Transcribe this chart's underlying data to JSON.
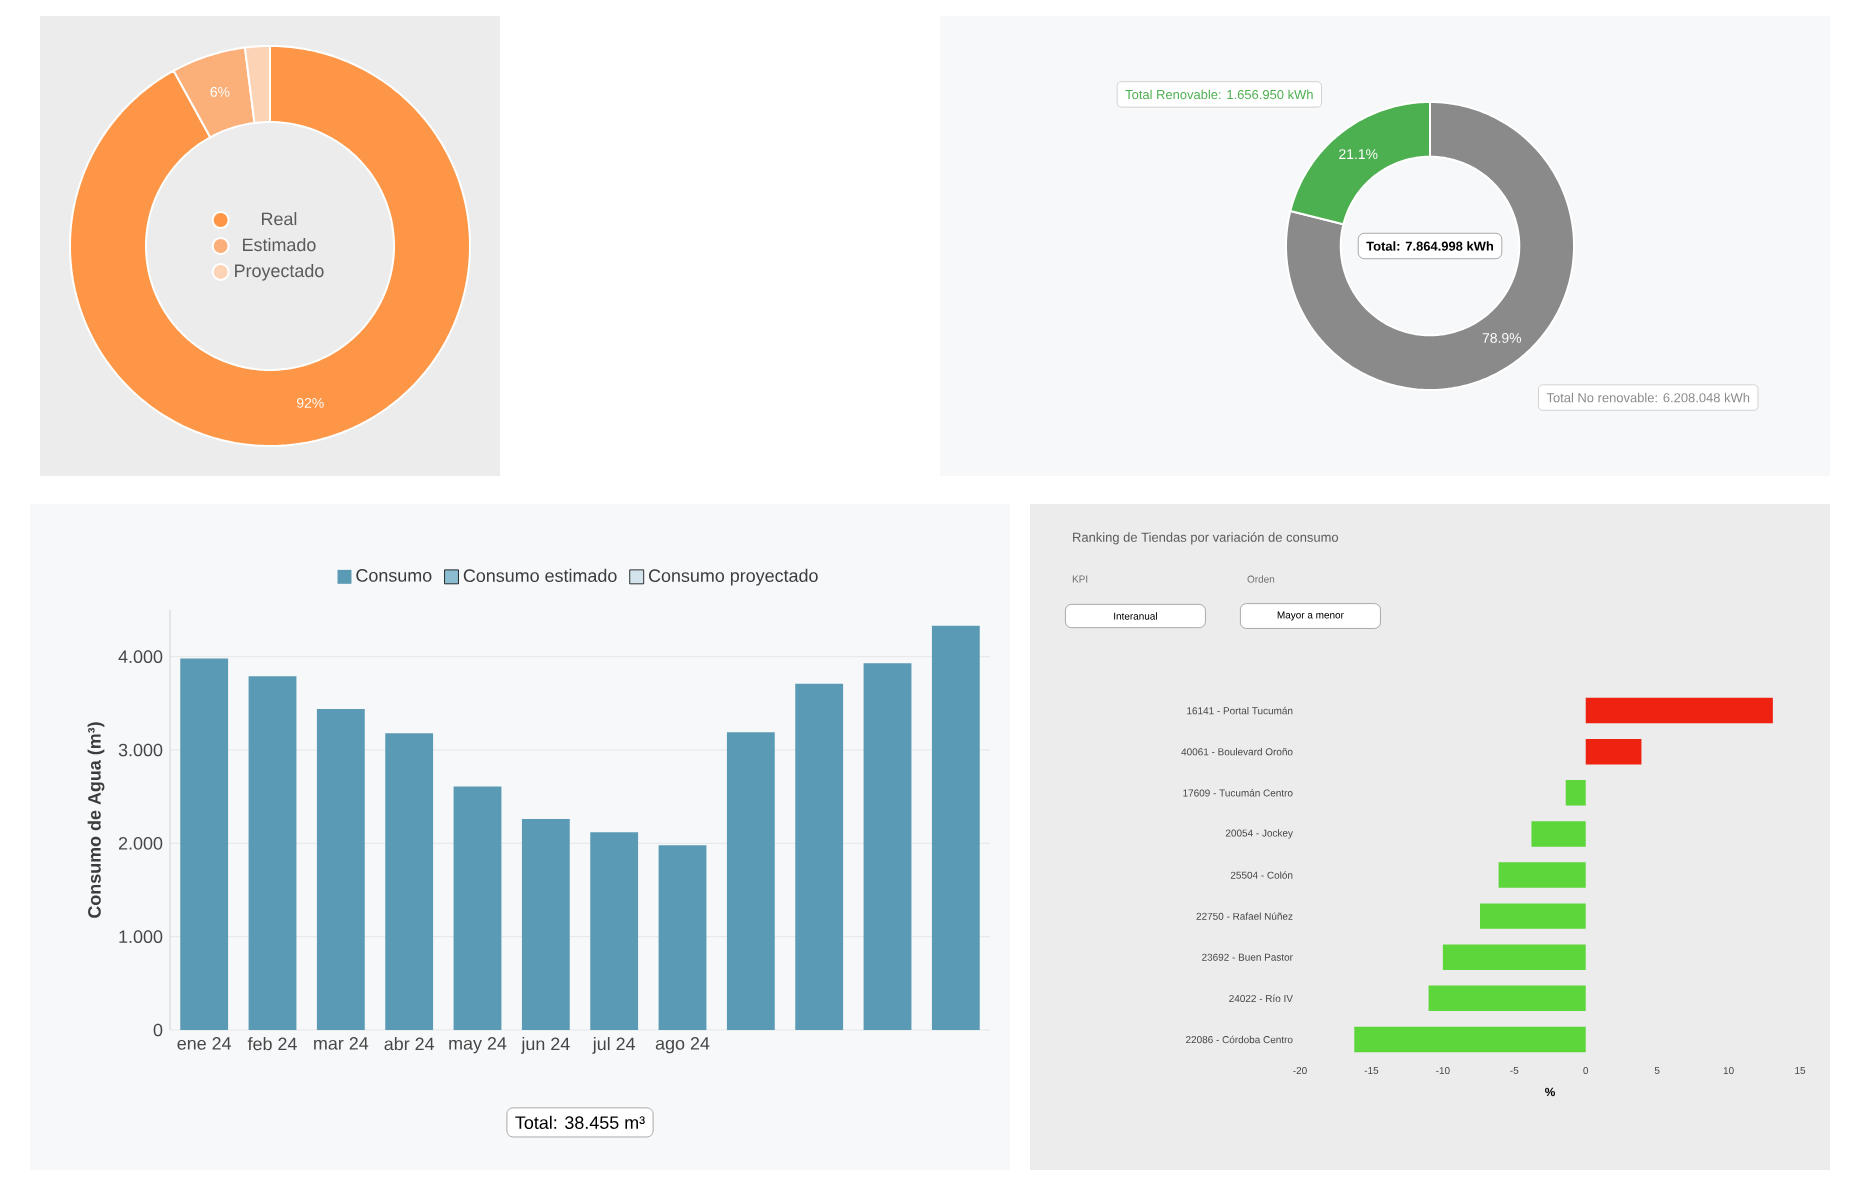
{
  "chart_data": [
    {
      "type": "donut",
      "categories": [
        "Real",
        "Estimado",
        "Proyectado"
      ],
      "values": [
        92,
        6,
        2
      ],
      "colors": [
        "#fd9646",
        "#fbb07a",
        "#fcd3b5"
      ],
      "value_labels": [
        "92%",
        "6%",
        null
      ],
      "legend": "center"
    },
    {
      "type": "donut",
      "categories": [
        "Total No renovable: 6.208.048 kWh",
        "Total Renovable: 1.656.950 kWh"
      ],
      "values": [
        78.9,
        21.1
      ],
      "colors": [
        "#8a8a8a",
        "#4caf50"
      ],
      "value_labels": [
        "78.9%",
        "21.1%"
      ],
      "annotations": [
        "Total: 7.864.998 kWh"
      ]
    },
    {
      "type": "bar",
      "ylabel": "Consumo de Agua (m³)",
      "categories": [
        "ene 24",
        "feb 24",
        "mar 24",
        "abr 24",
        "may 24",
        "jun 24",
        "jul 24",
        "ago 24",
        null,
        null,
        null,
        null
      ],
      "series": [
        {
          "name": "Consumo",
          "color": "#5b9ab4",
          "values": [
            3980,
            3790,
            3440,
            3180,
            2610,
            2260,
            2120,
            1980,
            3190,
            3710,
            3930,
            4330
          ]
        },
        {
          "name": "Consumo estimado",
          "color": "#8bbccf",
          "values": [
            null,
            null,
            null,
            null,
            null,
            null,
            null,
            null,
            null,
            null,
            null,
            null
          ]
        },
        {
          "name": "Consumo proyectado",
          "color": "#d3e4ec",
          "values": [
            null,
            null,
            null,
            null,
            null,
            null,
            null,
            null,
            null,
            null,
            null,
            null
          ]
        }
      ],
      "ylim": [
        0,
        4500
      ],
      "yticks": [
        0,
        {
          "value": 1000,
          "label": "1.000"
        },
        {
          "value": 2000,
          "label": "2.000"
        },
        {
          "value": 3000,
          "label": "3.000"
        },
        {
          "value": 4000,
          "label": "4.000"
        }
      ],
      "grid": "y",
      "legend": "top",
      "annotations": [
        "Total: 38.455 m³"
      ]
    },
    {
      "type": "bar",
      "orientation": "horizontal",
      "title": "Ranking de Tiendas por variación de consumo",
      "xlabel": "%",
      "categories": [
        "16141 - Portal Tucumán",
        "40061 - Boulevard Oroño",
        "17609 - Tucumán Centro",
        "20054 - Jockey",
        "25504 - Colón",
        "22750 - Rafael Núñez",
        "23692 - Buen Pastor",
        "24022 - Río IV",
        "22086 - Córdoba Centro"
      ],
      "values": [
        13.1,
        3.9,
        -1.4,
        -3.8,
        -6.1,
        -7.4,
        -10.0,
        -11.0,
        -16.2
      ],
      "colors": [
        "#ee2211",
        "#ee2211",
        "#5cd63a",
        "#5cd63a",
        "#5cd63a",
        "#5cd63a",
        "#5cd63a",
        "#5cd63a",
        "#5cd63a"
      ],
      "xlim": [
        -20,
        15
      ],
      "xticks": [
        -20,
        -15,
        -10,
        -5,
        0,
        5,
        10,
        15
      ],
      "annotations": [
        "KPI",
        "Interanual",
        "Orden",
        "Mayor a menor"
      ]
    }
  ]
}
